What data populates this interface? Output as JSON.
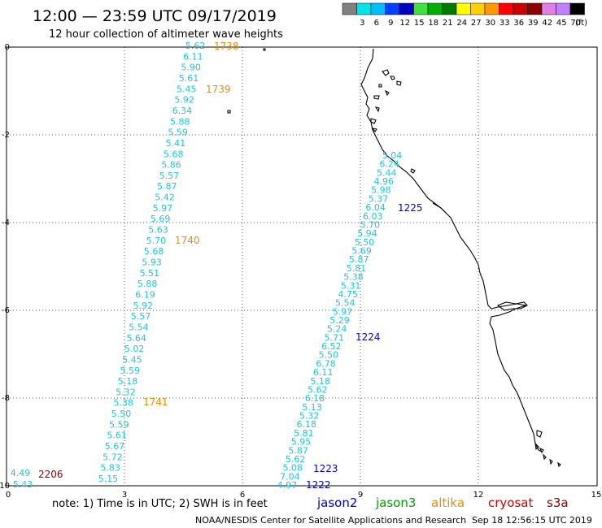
{
  "header": {
    "title": "12:00 — 23:59 UTC 09/17/2019",
    "subtitle": "12 hour collection of altimeter wave heights"
  },
  "color_scale": {
    "unit": "(ft)",
    "bins": [
      {
        "label": "",
        "color": "#808080"
      },
      {
        "label": "3",
        "color": "#00e5e5"
      },
      {
        "label": "6",
        "color": "#00bfff"
      },
      {
        "label": "9",
        "color": "#0040ff"
      },
      {
        "label": "12",
        "color": "#0000c0"
      },
      {
        "label": "15",
        "color": "#40e040"
      },
      {
        "label": "18",
        "color": "#00b000"
      },
      {
        "label": "21",
        "color": "#007a00"
      },
      {
        "label": "24",
        "color": "#ffff00"
      },
      {
        "label": "27",
        "color": "#ffd000"
      },
      {
        "label": "30",
        "color": "#ff9900"
      },
      {
        "label": "33",
        "color": "#ff0000"
      },
      {
        "label": "36",
        "color": "#c80000"
      },
      {
        "label": "39",
        "color": "#8b0000"
      },
      {
        "label": "42",
        "color": "#e080e0"
      },
      {
        "label": "45",
        "color": "#c080ff"
      },
      {
        "label": "70",
        "color": "#000000"
      }
    ]
  },
  "axes": {
    "x_ticks": [
      "0",
      "3",
      "6",
      "9",
      "12",
      "15"
    ],
    "y_ticks": [
      "0",
      "-2",
      "-4",
      "-6",
      "-8",
      "-10"
    ],
    "x_range": [
      0,
      15
    ],
    "y_range": [
      -10,
      0
    ]
  },
  "tracks": [
    {
      "name": "altika-west",
      "color": "#1cc7e0",
      "values": [
        "5.62",
        "6.11",
        "5.90",
        "5.61",
        "5.45",
        "5.92",
        "6.34",
        "5.88",
        "5.59",
        "5.41",
        "5.68",
        "5.86",
        "5.57",
        "5.87",
        "5.42",
        "5.97",
        "5.69",
        "5.63",
        "5.70",
        "5.68",
        "5.93",
        "5.51",
        "5.88",
        "6.19",
        "5.92",
        "5.57",
        "5.54",
        "5.64",
        "5.02",
        "5.45",
        "5.59",
        "5.18",
        "5.32",
        "5.38",
        "5.50",
        "5.59",
        "5.61",
        "5.67",
        "5.72",
        "5.83",
        "5.15"
      ]
    },
    {
      "name": "jason2-east",
      "color": "#1cc7e0",
      "values": [
        "5.04",
        "6.24",
        "5.44",
        "4.96",
        "5.98",
        "5.37",
        "6.04",
        "6.03",
        "5.70",
        "5.94",
        "5.50",
        "5.69",
        "5.87",
        "5.81",
        "5.38",
        "5.31",
        "4.75",
        "5.54",
        "5.97",
        "5.29",
        "5.24",
        "5.71",
        "6.52",
        "5.50",
        "6.78",
        "6.11",
        "5.18",
        "5.62",
        "6.18",
        "5.13",
        "5.32",
        "6.18",
        "5.81",
        "5.95",
        "5.87",
        "5.62",
        "5.08",
        "7.04",
        "4.97"
      ]
    },
    {
      "name": "cryosat-corner",
      "color": "#1cc7e0",
      "values": [
        "4.49",
        "5.43"
      ]
    }
  ],
  "pass_times": [
    {
      "label": "1738",
      "color": "#f08c00"
    },
    {
      "label": "1739",
      "color": "#f08c00"
    },
    {
      "label": "1740",
      "color": "#f08c00"
    },
    {
      "label": "1741",
      "color": "#f08c00"
    },
    {
      "label": "1225",
      "color": "#0000d8"
    },
    {
      "label": "1224",
      "color": "#0000d8"
    },
    {
      "label": "1223",
      "color": "#0000d8"
    },
    {
      "label": "1222",
      "color": "#0000d8"
    },
    {
      "label": "2206",
      "color": "#8b0000"
    }
  ],
  "footer": {
    "note": "note:  1) Time is in UTC;  2) SWH is in feet",
    "satellites": [
      {
        "name": "jason2",
        "color": "#0000d8"
      },
      {
        "name": "jason3",
        "color": "#00a000"
      },
      {
        "name": "altika",
        "color": "#f08c00"
      },
      {
        "name": "cryosat",
        "color": "#d00000"
      },
      {
        "name": "s3a",
        "color": "#8b0000"
      }
    ],
    "credit": "NOAA/NESDIS Center for Satellite Applications and Research",
    "timestamp": "Sep 18 12:56:15 UTC 2019"
  }
}
